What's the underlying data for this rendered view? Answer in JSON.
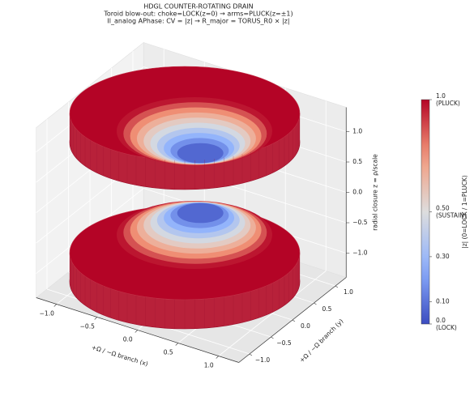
{
  "chart_data": {
    "type": "surface3d",
    "title": "HDGL COUNTER-ROTATING DRAIN",
    "subtitle": [
      "Toroid blow-out: choke=LOCK(z=0) → arms=PLUCK(z=±1)",
      "Il_analog APhase: CV = |z|  →  R_major = TORUS_R0 × |z|"
    ],
    "xlabel": "+Ω / −Ω branch (x)",
    "ylabel": "+Ω / −Ω branch (y)",
    "zlabel": "radial closure z = ρ/scale",
    "xlim": [
      -1.25,
      1.25
    ],
    "ylim": [
      -1.25,
      1.25
    ],
    "zlim": [
      -1.4,
      1.4
    ],
    "xticks": [
      {
        "value": -1,
        "label": "−1.0"
      },
      {
        "value": -0.5,
        "label": "−0.5"
      },
      {
        "value": 0,
        "label": "0.0"
      },
      {
        "value": 0.5,
        "label": "0.5"
      },
      {
        "value": 1,
        "label": "1.0"
      }
    ],
    "yticks": [
      {
        "value": -1,
        "label": "−1.0"
      },
      {
        "value": -0.5,
        "label": "−0.5"
      },
      {
        "value": 0,
        "label": "0.0"
      },
      {
        "value": 0.5,
        "label": "0.5"
      },
      {
        "value": 1,
        "label": "1.0"
      }
    ],
    "zticks": [
      {
        "value": -1,
        "label": "−1.0"
      },
      {
        "value": -0.5,
        "label": "−0.5"
      },
      {
        "value": 0,
        "label": "0.0"
      },
      {
        "value": 0.5,
        "label": "0.5"
      },
      {
        "value": 1,
        "label": "1.0"
      }
    ],
    "grid": true,
    "colormap": "coolwarm",
    "colorbar": {
      "label": "|z|  (0=LOCK / 1=PLUCK)",
      "lim": [
        0,
        1
      ],
      "ticks": [
        {
          "value": 0,
          "label": "0.0",
          "sublabel": "(LOCK)"
        },
        {
          "value": 0.1,
          "label": "0.10"
        },
        {
          "value": 0.3,
          "label": "0.30"
        },
        {
          "value": 0.5,
          "label": "0.50",
          "sublabel": "(SUSTAIN)"
        },
        {
          "value": 1,
          "label": "1.0",
          "sublabel": "(PLUCK)"
        }
      ]
    }
  }
}
